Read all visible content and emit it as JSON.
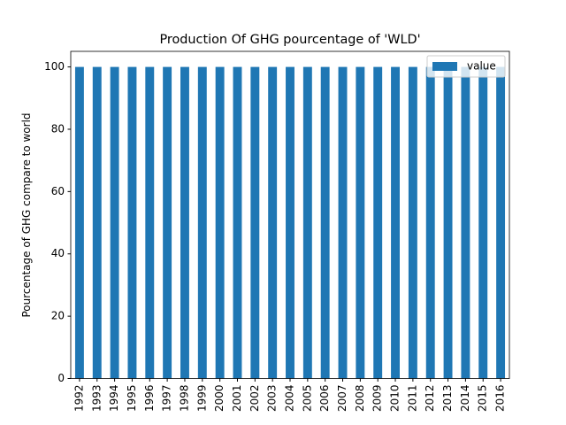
{
  "chart_data": {
    "type": "bar",
    "title": "Production Of GHG pourcentage of 'WLD'",
    "y_label": "Pourcentage of GHG compare to world",
    "categories": [
      "1992",
      "1993",
      "1994",
      "1995",
      "1996",
      "1997",
      "1998",
      "1999",
      "2000",
      "2001",
      "2002",
      "2003",
      "2004",
      "2005",
      "2006",
      "2007",
      "2008",
      "2009",
      "2010",
      "2011",
      "2012",
      "2013",
      "2014",
      "2015",
      "2016"
    ],
    "series": [
      {
        "name": "value",
        "color": "#1f77b4",
        "values": [
          100,
          100,
          100,
          100,
          100,
          100,
          100,
          100,
          100,
          100,
          100,
          100,
          100,
          100,
          100,
          100,
          100,
          100,
          100,
          100,
          100,
          100,
          100,
          100,
          100
        ]
      }
    ],
    "ylim": [
      0,
      105
    ],
    "yticks": [
      0,
      20,
      40,
      60,
      80,
      100
    ],
    "grid": false,
    "legend": "upper right"
  }
}
